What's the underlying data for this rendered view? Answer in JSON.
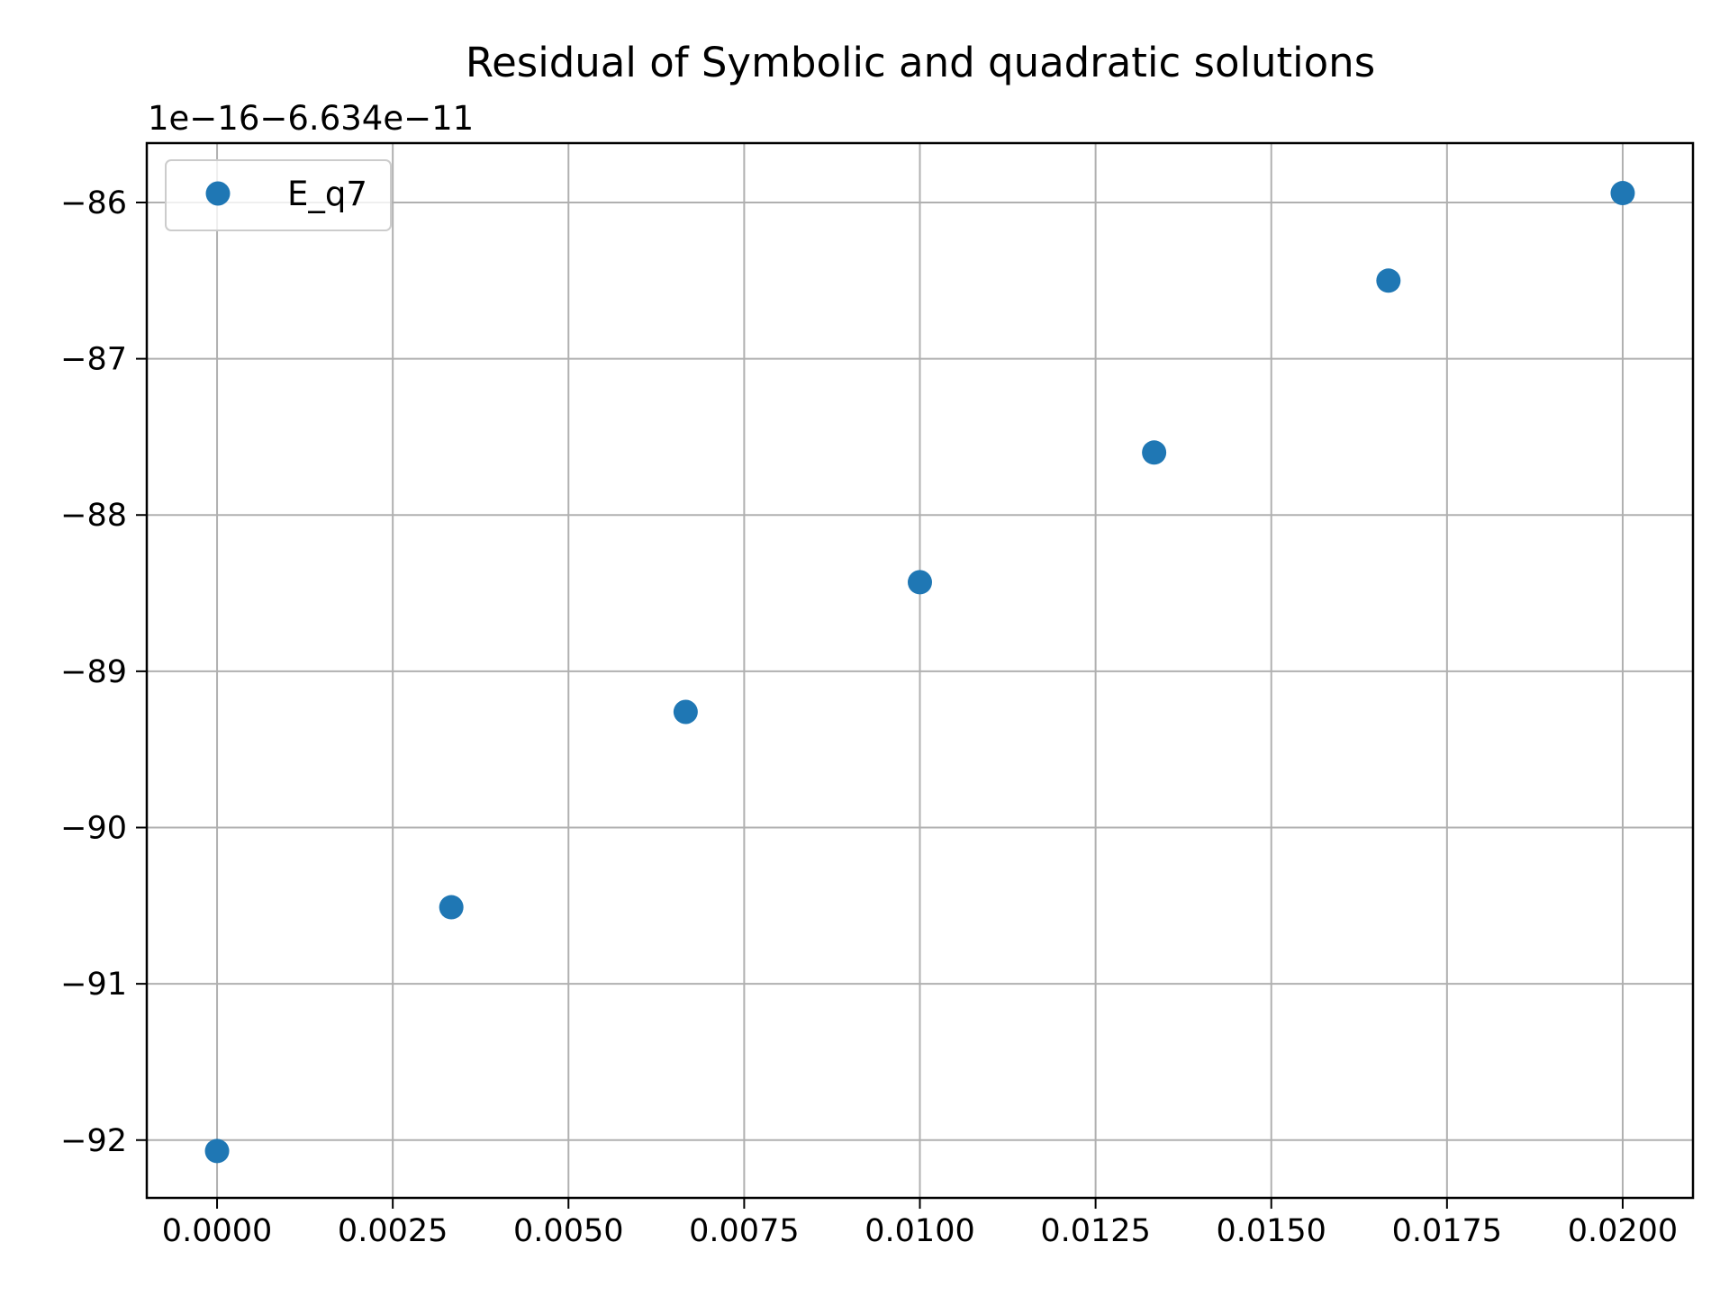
{
  "colors": {
    "series": "#1f77b4",
    "grid": "#b0b0b0",
    "axes": "#000000",
    "background": "#ffffff",
    "legend_border": "#cccccc"
  },
  "chart_data": {
    "type": "scatter",
    "title": "Residual of Symbolic and quadratic solutions",
    "xlabel": "",
    "ylabel": "",
    "y_offset_label": "1e−16−6.634e−11",
    "xlim": [
      -0.001,
      0.021
    ],
    "ylim": [
      -92.37,
      -85.62
    ],
    "x_ticks": [
      0.0,
      0.0025,
      0.005,
      0.0075,
      0.01,
      0.0125,
      0.015,
      0.0175,
      0.02
    ],
    "x_tick_labels": [
      "0.0000",
      "0.0025",
      "0.0050",
      "0.0075",
      "0.0100",
      "0.0125",
      "0.0150",
      "0.0175",
      "0.0200"
    ],
    "y_ticks": [
      -92,
      -91,
      -90,
      -89,
      -88,
      -87,
      -86
    ],
    "y_tick_labels": [
      "−92",
      "−91",
      "−90",
      "−89",
      "−88",
      "−87",
      "−86"
    ],
    "grid": true,
    "legend_position": "upper-left",
    "series": [
      {
        "name": "E_q7",
        "x": [
          0.0,
          0.003333,
          0.006667,
          0.01,
          0.013333,
          0.016667,
          0.02
        ],
        "y": [
          -92.07,
          -90.51,
          -89.26,
          -88.43,
          -87.6,
          -86.5,
          -85.94
        ]
      }
    ]
  }
}
